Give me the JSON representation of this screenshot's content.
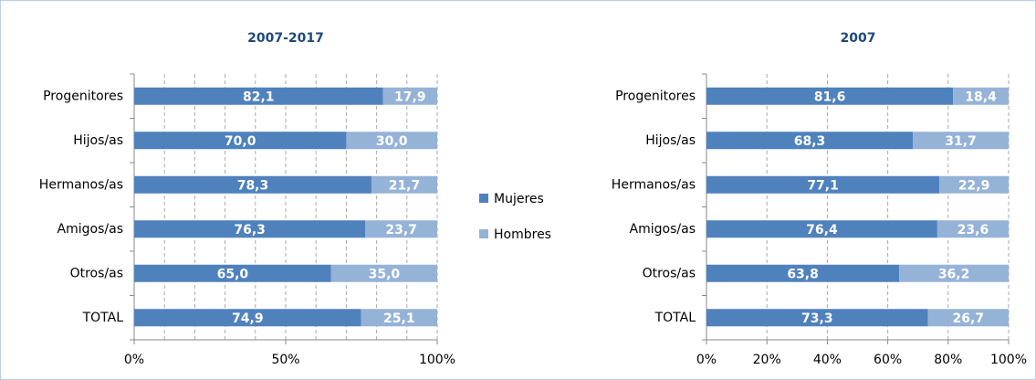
{
  "chart_data": [
    {
      "type": "stacked_bar_horizontal",
      "title": "2007-2017",
      "categories": [
        "Progenitores",
        "Hijos/as",
        "Hermanos/as",
        "Amigos/as",
        "Otros/as",
        "TOTAL"
      ],
      "series": [
        {
          "name": "Mujeres",
          "color": "#4f81bd",
          "values": [
            82.1,
            70.0,
            78.3,
            76.3,
            65.0,
            74.9
          ],
          "value_labels": [
            "82,1",
            "70,0",
            "78,3",
            "76,3",
            "65,0",
            "74,9"
          ]
        },
        {
          "name": "Hombres",
          "color": "#95b3d7",
          "values": [
            17.9,
            30.0,
            21.7,
            23.7,
            35.0,
            25.1
          ],
          "value_labels": [
            "17,9",
            "30,0",
            "21,7",
            "23,7",
            "35,0",
            "25,1"
          ]
        }
      ],
      "xlim": [
        0,
        100
      ],
      "xticks": [
        {
          "value": 0,
          "label": "0%"
        },
        {
          "value": 50,
          "label": "50%"
        },
        {
          "value": 100,
          "label": "100%"
        }
      ],
      "minor_xticks": [
        10,
        20,
        30,
        40,
        60,
        70,
        80,
        90
      ],
      "grid": true
    },
    {
      "type": "stacked_bar_horizontal",
      "title": "2007",
      "categories": [
        "Progenitores",
        "Hijos/as",
        "Hermanos/as",
        "Amigos/as",
        "Otros/as",
        "TOTAL"
      ],
      "series": [
        {
          "name": "Mujeres",
          "color": "#4f81bd",
          "values": [
            81.6,
            68.3,
            77.1,
            76.4,
            63.8,
            73.3
          ],
          "value_labels": [
            "81,6",
            "68,3",
            "77,1",
            "76,4",
            "63,8",
            "73,3"
          ]
        },
        {
          "name": "Hombres",
          "color": "#95b3d7",
          "values": [
            18.4,
            31.7,
            22.9,
            23.6,
            36.2,
            26.7
          ],
          "value_labels": [
            "18,4",
            "31,7",
            "22,9",
            "23,6",
            "36,2",
            "26,7"
          ]
        }
      ],
      "xlim": [
        0,
        100
      ],
      "xticks": [
        {
          "value": 0,
          "label": "0%"
        },
        {
          "value": 20,
          "label": "20%"
        },
        {
          "value": 40,
          "label": "40%"
        },
        {
          "value": 60,
          "label": "60%"
        },
        {
          "value": 80,
          "label": "80%"
        },
        {
          "value": 100,
          "label": "100%"
        }
      ],
      "grid": true
    }
  ]
}
